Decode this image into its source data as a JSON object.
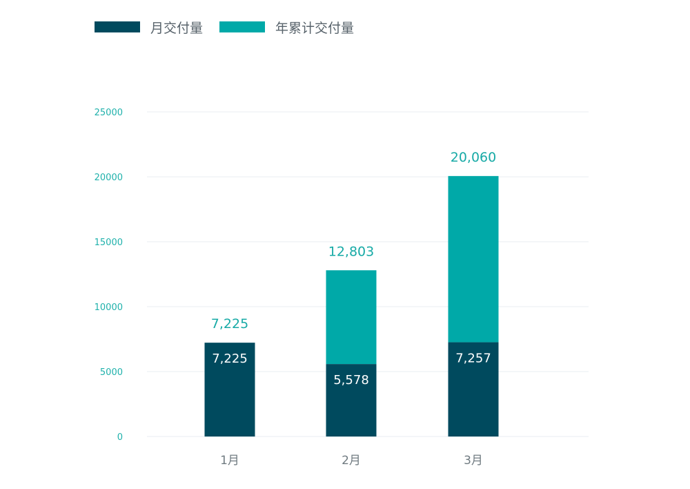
{
  "chart_data": {
    "type": "bar",
    "stacked": true,
    "categories": [
      "1月",
      "2月",
      "3月"
    ],
    "series": [
      {
        "name": "月交付量",
        "values": [
          7225,
          5578,
          7257
        ],
        "labels": [
          "7,225",
          "5,578",
          "7,257"
        ],
        "color": "#004a5e"
      },
      {
        "name": "年累计交付量",
        "values": [
          7225,
          12803,
          20060
        ],
        "labels": [
          "7,225",
          "12,803",
          "20,060"
        ],
        "color": "#00a9a8"
      }
    ],
    "y_ticks": [
      0,
      5000,
      10000,
      15000,
      20000,
      25000
    ],
    "ylim": [
      0,
      25000
    ],
    "grid": true,
    "legend_position": "top-left"
  }
}
